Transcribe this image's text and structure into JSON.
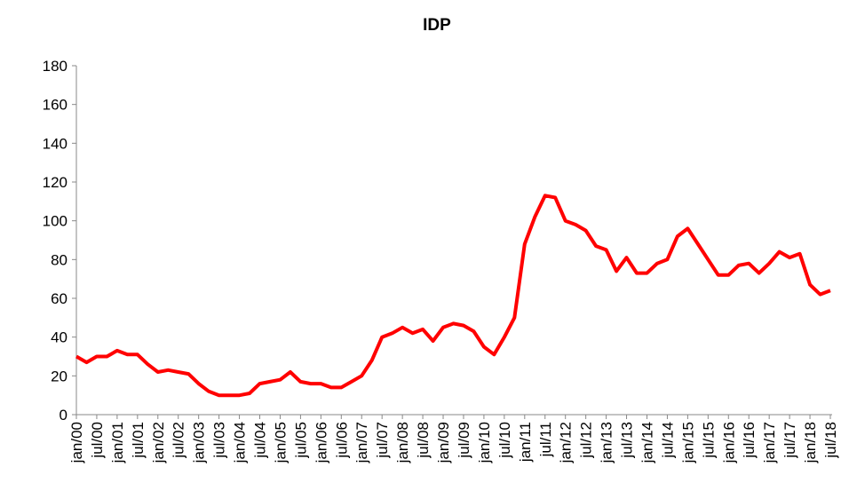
{
  "chart_data": {
    "type": "line",
    "title": "IDP",
    "categories": [
      "jan/00",
      null,
      "jul/00",
      null,
      "jan/01",
      null,
      "jul/01",
      null,
      "jan/02",
      null,
      "jul/02",
      null,
      "jan/03",
      null,
      "jul/03",
      null,
      "jan/04",
      null,
      "jul/04",
      null,
      "jan/05",
      null,
      "jul/05",
      null,
      "jan/06",
      null,
      "jul/06",
      null,
      "jan/07",
      null,
      "jul/07",
      null,
      "jan/08",
      null,
      "jul/08",
      null,
      "jan/09",
      null,
      "jul/09",
      null,
      "jan/10",
      null,
      "jul/10",
      null,
      "jan/11",
      null,
      "jul/11",
      null,
      "jan/12",
      null,
      "jul/12",
      null,
      "jan/13",
      null,
      "jul/13",
      null,
      "jan/14",
      null,
      "jul/14",
      null,
      "jan/15",
      null,
      "jul/15",
      null,
      "jan/16",
      null,
      "jul/16",
      null,
      "jan/17",
      null,
      "jul/17",
      null,
      "jan/18",
      null,
      "jul/18"
    ],
    "series": [
      {
        "name": "IDP",
        "color": "#ff0000",
        "values": [
          30,
          27,
          30,
          30,
          33,
          31,
          31,
          26,
          22,
          23,
          22,
          21,
          16,
          12,
          10,
          10,
          10,
          11,
          16,
          17,
          18,
          22,
          17,
          16,
          16,
          14,
          14,
          17,
          20,
          28,
          40,
          42,
          45,
          42,
          44,
          38,
          45,
          47,
          46,
          43,
          35,
          31,
          40,
          50,
          88,
          102,
          113,
          112,
          100,
          98,
          95,
          87,
          85,
          74,
          81,
          73,
          73,
          78,
          80,
          92,
          96,
          88,
          80,
          72,
          72,
          77,
          78,
          73,
          78,
          84,
          81,
          83,
          67,
          62,
          64
        ]
      }
    ],
    "ylim": [
      0,
      180
    ],
    "yticks": [
      0,
      20,
      40,
      60,
      80,
      100,
      120,
      140,
      160,
      180
    ],
    "grid": false
  }
}
